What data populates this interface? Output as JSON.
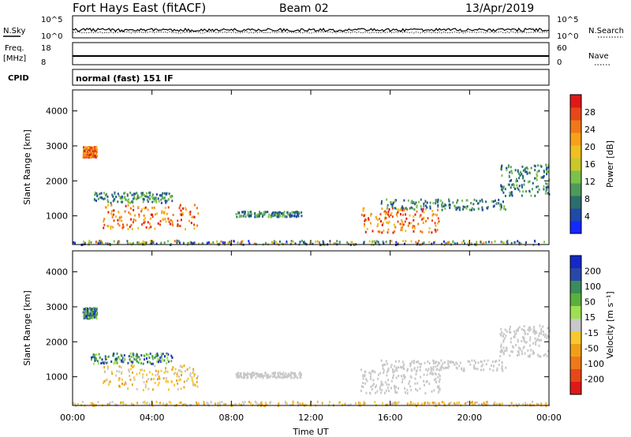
{
  "header": {
    "title": "Fort Hays East (fitACF)",
    "beam": "Beam 02",
    "date": "13/Apr/2019"
  },
  "noise_panel": {
    "left_label": "N.Sky",
    "right_label": "N.Search",
    "left_ticks": [
      "10^5",
      "10^0"
    ],
    "right_ticks": [
      "10^5",
      "10^0"
    ]
  },
  "freq_panel": {
    "label": "Freq.",
    "unit": "[MHz]",
    "right_label": "Nave",
    "left_ticks": [
      "18",
      "8"
    ],
    "right_ticks": [
      "60",
      "0"
    ],
    "cpid_label": "CPID",
    "cpid_text": "normal (fast) 151 IF"
  },
  "chart_data": [
    {
      "type": "heatmap",
      "title": "",
      "ylabel": "Slant Range [km]",
      "xlabel": "",
      "y_ticks": [
        "1000",
        "2000",
        "3000",
        "4000"
      ],
      "ylim": [
        180,
        4600
      ],
      "colorbar": {
        "label": "Power [dB]",
        "ticks": [
          "4",
          "8",
          "12",
          "16",
          "20",
          "24",
          "28"
        ],
        "colors": [
          "#1428ff",
          "#1e4aa8",
          "#2a6e6e",
          "#4e9a5a",
          "#7cc24a",
          "#c8c828",
          "#f0c020",
          "#f8a018",
          "#f07818",
          "#e84818",
          "#e01818"
        ]
      },
      "regions": [
        {
          "t0": 1.5,
          "t1": 6.3,
          "r0": 650,
          "r1": 1350,
          "level": "high"
        },
        {
          "t0": 0.9,
          "t1": 5.0,
          "r0": 1400,
          "r1": 1700,
          "level": "mid"
        },
        {
          "t0": 8.2,
          "t1": 11.5,
          "r0": 1000,
          "r1": 1150,
          "level": "mid"
        },
        {
          "t0": 14.5,
          "t1": 18.5,
          "r0": 550,
          "r1": 1250,
          "level": "high"
        },
        {
          "t0": 15.5,
          "t1": 21.8,
          "r0": 1200,
          "r1": 1500,
          "level": "mid"
        },
        {
          "t0": 21.5,
          "t1": 24.0,
          "r0": 1600,
          "r1": 2500,
          "level": "mid"
        },
        {
          "t0": 0.5,
          "t1": 1.2,
          "r0": 2700,
          "r1": 3000,
          "level": "high"
        },
        {
          "t0": 0.0,
          "t1": 24.0,
          "r0": 200,
          "r1": 320,
          "level": "low"
        }
      ]
    },
    {
      "type": "heatmap",
      "title": "",
      "ylabel": "Slant Range [km]",
      "xlabel": "Time UT",
      "x_ticks": [
        "00:00",
        "04:00",
        "08:00",
        "12:00",
        "16:00",
        "20:00",
        "00:00"
      ],
      "y_ticks": [
        "1000",
        "2000",
        "3000",
        "4000"
      ],
      "ylim": [
        180,
        4600
      ],
      "colorbar": {
        "label": "Velocity [m s⁻¹]",
        "ticks": [
          "200",
          "100",
          "50",
          "15",
          "-15",
          "-50",
          "-100",
          "-200"
        ],
        "colors": [
          "#1428c8",
          "#2848a8",
          "#3a8c5a",
          "#5ab03c",
          "#9ee050",
          "#c8c8c8",
          "#f8c830",
          "#f0a018",
          "#f07818",
          "#e84818",
          "#e01818"
        ]
      },
      "regions": [
        {
          "t0": 1.5,
          "t1": 6.3,
          "r0": 650,
          "r1": 1350,
          "level": "neg"
        },
        {
          "t0": 0.9,
          "t1": 5.0,
          "r0": 1400,
          "r1": 1700,
          "level": "pos"
        },
        {
          "t0": 8.2,
          "t1": 11.5,
          "r0": 1000,
          "r1": 1150,
          "level": "gray"
        },
        {
          "t0": 14.5,
          "t1": 18.5,
          "r0": 550,
          "r1": 1250,
          "level": "gray"
        },
        {
          "t0": 15.5,
          "t1": 21.8,
          "r0": 1200,
          "r1": 1500,
          "level": "gray"
        },
        {
          "t0": 21.5,
          "t1": 24.0,
          "r0": 1600,
          "r1": 2500,
          "level": "gray"
        },
        {
          "t0": 0.5,
          "t1": 1.2,
          "r0": 2700,
          "r1": 3000,
          "level": "pos"
        },
        {
          "t0": 0.0,
          "t1": 24.0,
          "r0": 200,
          "r1": 320,
          "level": "neg"
        }
      ]
    }
  ]
}
